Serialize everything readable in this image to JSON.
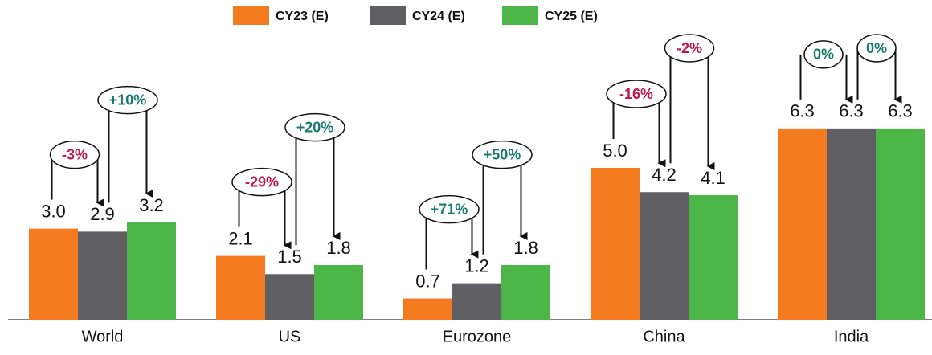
{
  "chart_data": {
    "type": "bar",
    "categories": [
      "World",
      "US",
      "Eurozone",
      "China",
      "India"
    ],
    "series": [
      {
        "name": "CY23 (E)",
        "color": "#f47b20",
        "values": [
          3.0,
          2.1,
          0.7,
          5.0,
          6.3
        ],
        "value_labels": [
          "3.0",
          "2.1",
          "0.7",
          "5.0",
          "6.3"
        ]
      },
      {
        "name": "CY24 (E)",
        "color": "#5f5f64",
        "values": [
          2.9,
          1.5,
          1.2,
          4.2,
          6.3
        ],
        "value_labels": [
          "2.9",
          "1.5",
          "1.2",
          "4.2",
          "6.3"
        ],
        "change_labels": [
          "-3%",
          "-29%",
          "+71%",
          "-16%",
          "0%"
        ]
      },
      {
        "name": "CY25 (E)",
        "color": "#4cb748",
        "values": [
          3.2,
          1.8,
          1.8,
          4.1,
          6.3
        ],
        "value_labels": [
          "3.2",
          "1.8",
          "1.8",
          "4.1",
          "6.3"
        ],
        "change_labels": [
          "+10%",
          "+20%",
          "+50%",
          "-2%",
          "0%"
        ]
      }
    ]
  }
}
